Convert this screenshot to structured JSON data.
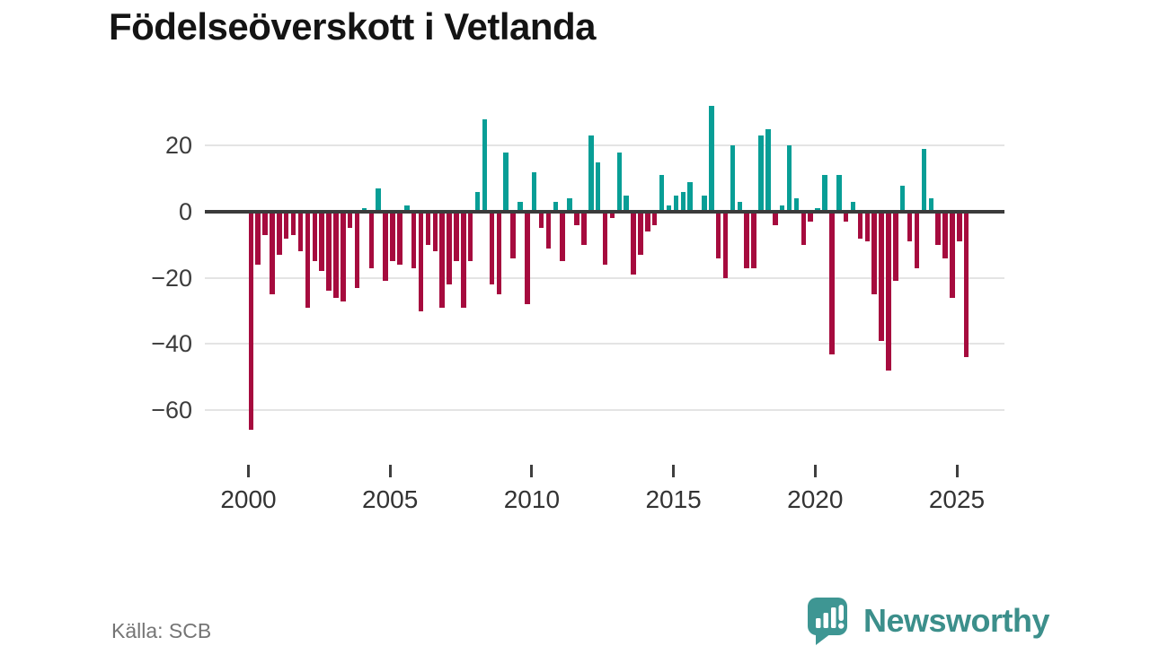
{
  "title": "Födelseöverskott i Vetlanda",
  "source": "Källa: SCB",
  "branding": {
    "name": "Newsworthy",
    "color": "#3c8f8b"
  },
  "chart_data": {
    "type": "bar",
    "title": "Födelseöverskott i Vetlanda",
    "xlabel": "",
    "ylabel": "",
    "period": "quarterly",
    "start_year": 2000,
    "start_quarter": 1,
    "end_year": 2025,
    "end_quarter": 2,
    "values": [
      -66,
      -16,
      -7,
      -25,
      -13,
      -8,
      -7,
      -12,
      -29,
      -15,
      -18,
      -24,
      -26,
      -27,
      -5,
      -23,
      1,
      -17,
      7,
      -21,
      -15,
      -16,
      2,
      -17,
      -30,
      -10,
      -12,
      -29,
      -22,
      -15,
      -29,
      -15,
      6,
      28,
      -22,
      -25,
      18,
      -14,
      3,
      -28,
      12,
      -5,
      -11,
      3,
      -15,
      4,
      -4,
      -10,
      23,
      15,
      -16,
      -2,
      18,
      5,
      -19,
      -13,
      -6,
      -4,
      11,
      2,
      5,
      6,
      9,
      0,
      5,
      32,
      -14,
      -20,
      20,
      3,
      -17,
      -17,
      23,
      25,
      -4,
      2,
      20,
      4,
      -10,
      -3,
      1,
      11,
      -43,
      11,
      -3,
      3,
      -8,
      -9,
      -25,
      -39,
      -48,
      -21,
      8,
      -9,
      -17,
      19,
      4,
      -10,
      -14,
      -26,
      -9,
      -44
    ],
    "y_ticks": [
      20,
      0,
      -20,
      -40,
      -60
    ],
    "x_tick_years": [
      2000,
      2005,
      2010,
      2015,
      2020,
      2025
    ],
    "ylim": [
      -70,
      35
    ],
    "grid": true,
    "legend": "none",
    "colors": {
      "positive": "#089e96",
      "negative": "#a60b3e"
    }
  }
}
